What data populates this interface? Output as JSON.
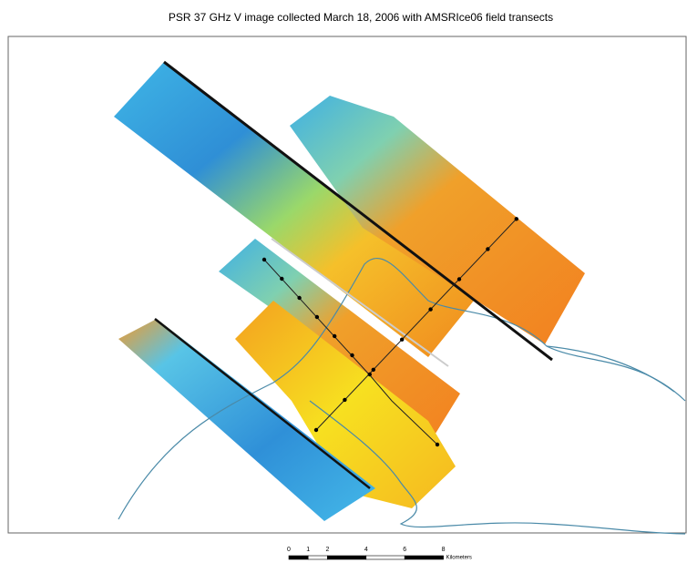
{
  "title": "PSR 37 GHz V image collected March 18, 2006 with AMSRIce06 field transects",
  "scale_bar": {
    "ticks": [
      0,
      1,
      2,
      4,
      6,
      8
    ],
    "unit": "Kilometers"
  }
}
